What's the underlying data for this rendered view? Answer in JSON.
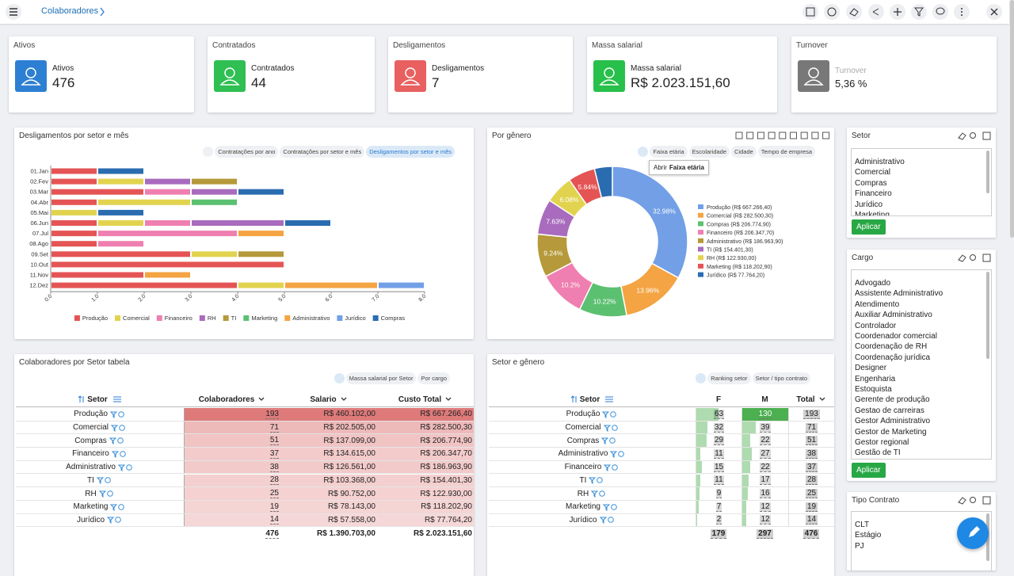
{
  "header": {
    "breadcrumb": "Colaboradores"
  },
  "kpis": [
    {
      "title": "Ativos",
      "label": "Ativos",
      "value": "476",
      "color": "#2d7fd3"
    },
    {
      "title": "Contratados",
      "label": "Contratados",
      "value": "44",
      "color": "#2fbf52"
    },
    {
      "title": "Desligamentos",
      "label": "Desligamentos",
      "value": "7",
      "color": "#e86060"
    },
    {
      "title": "Massa salarial",
      "label": "Massa salarial",
      "value": "R$ 2.023.151,60",
      "color": "#27c04a"
    },
    {
      "title": "Turnover",
      "label": "Turnover",
      "value": "5,36 %",
      "color": "#787878"
    }
  ],
  "chart_data": [
    {
      "type": "bar",
      "orientation": "horizontal",
      "stacked": true,
      "title": "Desligamentos por setor e mês",
      "buttons": [
        "Contratações por ano",
        "Contratações por setor e mês",
        "Desligamentos por setor e mês"
      ],
      "categories": [
        "01.Jan",
        "02.Fev",
        "03.Mar",
        "04.Abr",
        "05.Mai",
        "06.Jun",
        "07.Jul",
        "08.Ago",
        "09.Set",
        "10.Out",
        "11.Nov",
        "12.Dez"
      ],
      "series": [
        {
          "name": "Produção",
          "color": "#e55454",
          "values": [
            1,
            1,
            2,
            1,
            null,
            1,
            1,
            1,
            3,
            5,
            2,
            4
          ]
        },
        {
          "name": "Comercial",
          "color": "#e2d34f",
          "values": [
            null,
            1,
            null,
            2,
            1,
            1,
            null,
            null,
            1,
            null,
            null,
            1
          ]
        },
        {
          "name": "Financeiro",
          "color": "#ef7fb0",
          "values": [
            null,
            null,
            1,
            null,
            null,
            1,
            3,
            1,
            null,
            null,
            null,
            null
          ]
        },
        {
          "name": "RH",
          "color": "#a86bbd",
          "values": [
            null,
            1,
            1,
            null,
            null,
            2,
            null,
            null,
            null,
            null,
            null,
            null
          ]
        },
        {
          "name": "TI",
          "color": "#b5993a",
          "values": [
            null,
            1,
            null,
            null,
            null,
            null,
            null,
            null,
            1,
            null,
            null,
            null
          ]
        },
        {
          "name": "Marketing",
          "color": "#5cc071",
          "values": [
            null,
            null,
            null,
            1,
            null,
            null,
            null,
            null,
            null,
            null,
            null,
            null
          ]
        },
        {
          "name": "Administrativo",
          "color": "#f4a443",
          "values": [
            null,
            null,
            null,
            null,
            null,
            null,
            1,
            null,
            null,
            null,
            1,
            2
          ]
        },
        {
          "name": "Jurídico",
          "color": "#729fe6",
          "values": [
            null,
            null,
            null,
            null,
            null,
            null,
            null,
            null,
            null,
            null,
            null,
            1
          ]
        },
        {
          "name": "Compras",
          "color": "#2a6cb0",
          "values": [
            1,
            null,
            1,
            null,
            1,
            1,
            null,
            null,
            null,
            null,
            null,
            null
          ]
        }
      ],
      "xlim": [
        0,
        8
      ],
      "xticks": [
        {
          "value": 0,
          "label": "0.0"
        },
        {
          "value": 1,
          "label": "1.0"
        },
        {
          "value": 2,
          "label": "2.0"
        },
        {
          "value": 3,
          "label": "3.0"
        },
        {
          "value": 4,
          "label": "4.0"
        },
        {
          "value": 5,
          "label": "5.0"
        },
        {
          "value": 6,
          "label": "6.0"
        },
        {
          "value": 7,
          "label": "7.0"
        },
        {
          "value": 8,
          "label": "8.0"
        }
      ]
    },
    {
      "type": "pie",
      "donut": true,
      "title": "Por gênero",
      "buttons": [
        "Faixa etária",
        "Escolaridade",
        "Cidade",
        "Tempo de empresa"
      ],
      "tooltip": {
        "prefix": "Abrir",
        "bold": "Faixa etária"
      },
      "categories": [
        "Produção (R$ 667.266,40)",
        "Comercial (R$ 282.500,30)",
        "Compras (R$ 206.774,90)",
        "Financeiro (R$ 206.347,70)",
        "Administrativo (R$ 186.963,90)",
        "TI (R$ 154.401,30)",
        "RH (R$ 122.930,00)",
        "Marketing (R$ 118.202,90)",
        "Jurídico (R$ 77.764,20)"
      ],
      "values": [
        32.98,
        13.96,
        10.22,
        10.2,
        9.24,
        7.63,
        6.08,
        5.84,
        3.84
      ],
      "value_labels": [
        "32.98%",
        "13.96%",
        "10.22%",
        "10.2%",
        "9.24%",
        "7.63%",
        "6.08%",
        "5.84%",
        null
      ],
      "colors": [
        "#729fe6",
        "#f4a443",
        "#5cc071",
        "#ef7fb0",
        "#b5993a",
        "#a86bbd",
        "#e2d34f",
        "#e55454",
        "#2a6cb0"
      ]
    }
  ],
  "tables": [
    {
      "title": "Colaboradores por Setor tabela",
      "buttons": [
        "Massa salarial por Setor",
        "Por cargo"
      ],
      "columns": [
        "Setor",
        "Colaboradores",
        "Salario",
        "Custo Total"
      ],
      "rows": [
        [
          "Produção",
          193,
          "R$ 460.102,00",
          "R$ 667.266,40"
        ],
        [
          "Comercial",
          71,
          "R$ 202.505,00",
          "R$ 282.500,30"
        ],
        [
          "Compras",
          51,
          "R$ 137.099,00",
          "R$ 206.774,90"
        ],
        [
          "Financeiro",
          37,
          "R$ 134.615,00",
          "R$ 206.347,70"
        ],
        [
          "Administrativo",
          38,
          "R$ 126.561,00",
          "R$ 186.963,90"
        ],
        [
          "TI",
          28,
          "R$ 103.368,00",
          "R$ 154.401,30"
        ],
        [
          "RH",
          25,
          "R$ 90.752,00",
          "R$ 122.930,00"
        ],
        [
          "Marketing",
          19,
          "R$ 78.143,00",
          "R$ 118.202,90"
        ],
        [
          "Jurídico",
          14,
          "R$ 57.558,00",
          "R$ 77.764,20"
        ]
      ],
      "total": [
        476,
        "R$ 1.390.703,00",
        "R$ 2.023.151,60"
      ]
    },
    {
      "title": "Setor e gênero",
      "buttons": [
        "Ranking setor",
        "Setor / tipo contrato"
      ],
      "columns": [
        "Setor",
        "F",
        "M",
        "Total"
      ],
      "rows": [
        [
          "Produção",
          63,
          130,
          193
        ],
        [
          "Comercial",
          32,
          39,
          71
        ],
        [
          "Compras",
          29,
          22,
          51
        ],
        [
          "Administrativo",
          11,
          27,
          38
        ],
        [
          "Financeiro",
          15,
          22,
          37
        ],
        [
          "TI",
          11,
          17,
          28
        ],
        [
          "RH",
          9,
          16,
          25
        ],
        [
          "Marketing",
          7,
          12,
          19
        ],
        [
          "Jurídico",
          2,
          12,
          14
        ]
      ],
      "total": [
        179,
        297,
        476
      ]
    }
  ],
  "filters": [
    {
      "title": "Setor",
      "items": [
        "Administrativo",
        "Comercial",
        "Compras",
        "Financeiro",
        "Jurídico",
        "Marketing"
      ],
      "button": "Aplicar"
    },
    {
      "title": "Cargo",
      "items": [
        "Advogado",
        "Assistente Administrativo",
        "Atendimento",
        "Auxiliar Administrativo",
        "Controlador",
        "Coordenador comercial",
        "Coordenação de RH",
        "Coordenação jurídica",
        "Designer",
        "Engenharia",
        "Estoquista",
        "Gerente de produção",
        "Gestao de carreiras",
        "Gestor Administrativo",
        "Gestor de Marketing",
        "Gestor regional",
        "Gestão de TI"
      ],
      "button": "Aplicar"
    },
    {
      "title": "Tipo Contrato",
      "items": [
        "CLT",
        "Estágio",
        "PJ"
      ]
    }
  ]
}
